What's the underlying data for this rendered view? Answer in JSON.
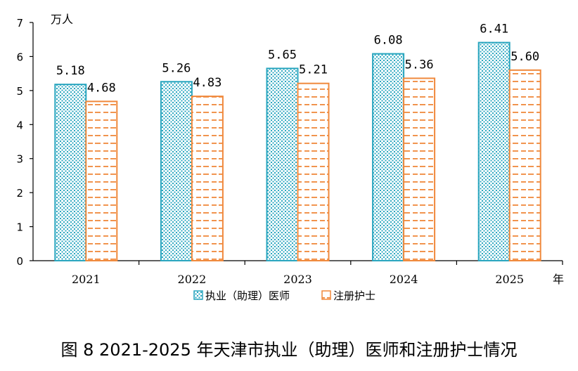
{
  "caption": "图 8 2021-2025 年天津市执业（助理）医师和注册护士情况",
  "colors": {
    "doctor_border": "#2aa6bf",
    "doctor_dot": "#2aa6bf",
    "nurse_border": "#f0893c",
    "nurse_dash": "#f0893c",
    "axis": "#000000"
  },
  "chart_data": {
    "type": "bar",
    "categories": [
      "2021",
      "2022",
      "2023",
      "2024",
      "2025"
    ],
    "series": [
      {
        "name": "执业（助理）医师",
        "values": [
          5.18,
          5.26,
          5.65,
          6.08,
          6.41
        ],
        "labels": [
          "5.18",
          "5.26",
          "5.65",
          "6.08",
          "6.41"
        ]
      },
      {
        "name": "注册护士",
        "values": [
          4.68,
          4.83,
          5.21,
          5.36,
          5.6
        ],
        "labels": [
          "4.68",
          "4.83",
          "5.21",
          "5.36",
          "5.60"
        ]
      }
    ],
    "ylabel": "万人",
    "xlabel": "年",
    "ylim": [
      0,
      7
    ],
    "yticks": [
      "0",
      "1",
      "2",
      "3",
      "4",
      "5",
      "6",
      "7"
    ],
    "grid": false,
    "legend_position": "bottom-center"
  }
}
